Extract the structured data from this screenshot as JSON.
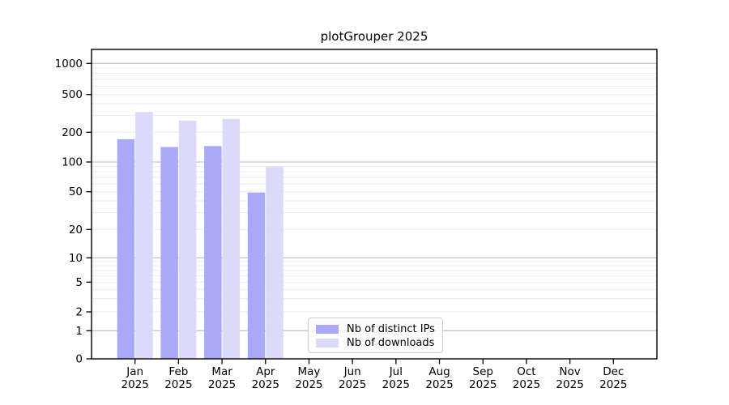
{
  "chart_data": {
    "type": "bar",
    "title": "plotGrouper 2025",
    "scale": "symlog",
    "grid": "both",
    "categories": [
      "Jan",
      "Feb",
      "Mar",
      "Apr",
      "May",
      "Jun",
      "Jul",
      "Aug",
      "Sep",
      "Oct",
      "Nov",
      "Dec"
    ],
    "year_label": "2025",
    "yticks": [
      0,
      1,
      2,
      5,
      10,
      20,
      50,
      100,
      200,
      500,
      1000
    ],
    "ylim": [
      0,
      1400
    ],
    "series": [
      {
        "name": "Nb of distinct IPs",
        "color": "#a9a9f7",
        "values": [
          170,
          142,
          145,
          49,
          0,
          0,
          0,
          0,
          0,
          0,
          0,
          0
        ]
      },
      {
        "name": "Nb of downloads",
        "color": "#dbdbf9",
        "values": [
          327,
          265,
          276,
          90,
          0,
          0,
          0,
          0,
          0,
          0,
          0,
          0
        ]
      }
    ],
    "legend_position": "lower center",
    "colors": {
      "major_grid": "#bdbdbd",
      "minor_grid": "#ebebeb",
      "spine": "#000000",
      "text": "#000000"
    }
  }
}
